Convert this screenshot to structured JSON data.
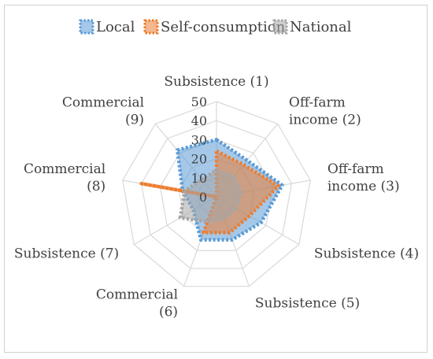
{
  "chart_data": {
    "type": "radar",
    "title": "",
    "categories": [
      [
        "Subsistence (1)"
      ],
      [
        "Off-farm",
        "income (2)"
      ],
      [
        "Off-farm",
        "income (3)"
      ],
      [
        "Subsistence (4)"
      ],
      [
        "Subsistence (5)"
      ],
      [
        "Commercial",
        "(6)"
      ],
      [
        "Subsistence (7)"
      ],
      [
        "Commercial",
        "(8)"
      ],
      [
        "Commercial",
        "(9)"
      ]
    ],
    "rlim": [
      0,
      50
    ],
    "ticks": [
      0,
      10,
      20,
      30,
      40,
      50
    ],
    "grid": true,
    "legend_position": "top",
    "series": [
      {
        "name": "Local",
        "color": "#5b9bd5",
        "values": [
          30,
          25,
          35,
          27,
          24,
          24,
          14,
          18,
          32
        ]
      },
      {
        "name": "Self-consumption",
        "color": "#ed7d31",
        "values": [
          24,
          22,
          33,
          20,
          20,
          20,
          0,
          40,
          0
        ]
      },
      {
        "name": "National",
        "color": "#a5a5a5",
        "values": [
          14,
          14,
          13,
          12,
          12,
          14,
          22,
          17,
          12
        ]
      }
    ]
  }
}
